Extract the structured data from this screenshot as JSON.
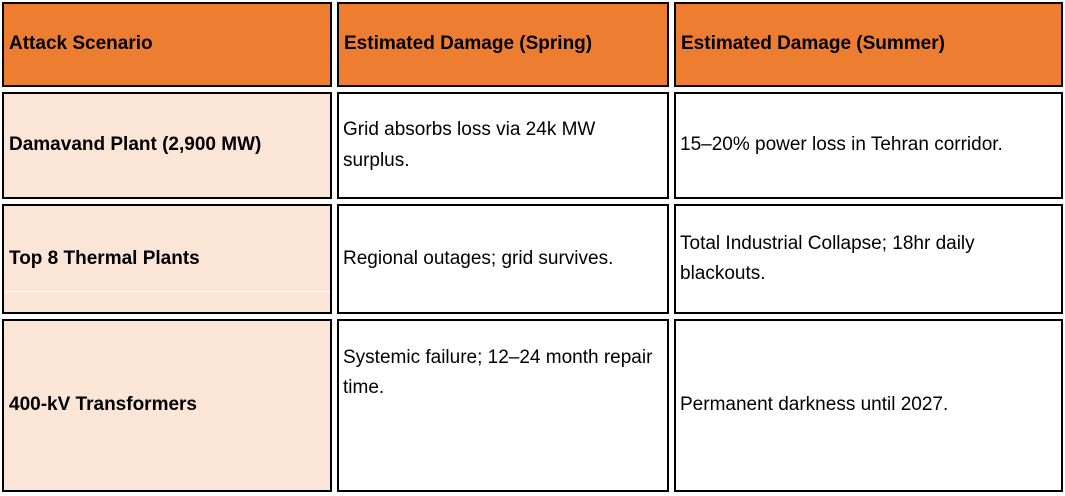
{
  "table": {
    "columns": [
      {
        "label": "Attack Scenario"
      },
      {
        "label": "Estimated Damage (Spring)"
      },
      {
        "label": "Estimated Damage (Summer)"
      }
    ],
    "rows": [
      {
        "scenario": "Damavand Plant (2,900 MW)",
        "spring": "Grid absorbs loss via 24k MW surplus.",
        "summer": "15–20% power loss in Tehran corridor."
      },
      {
        "scenario": "Top 8 Thermal Plants",
        "spring": "Regional outages; grid survives.",
        "summer": "Total Industrial Collapse; 18hr daily blackouts."
      },
      {
        "scenario": "400-kV Transformers",
        "spring": "Systemic failure; 12–24 month repair time.",
        "summer": "Permanent darkness until 2027."
      }
    ]
  },
  "colors": {
    "header_bg": "#ED7D31",
    "scenario_bg": "#FBE5D6",
    "border": "#000000",
    "text": "#000000"
  }
}
